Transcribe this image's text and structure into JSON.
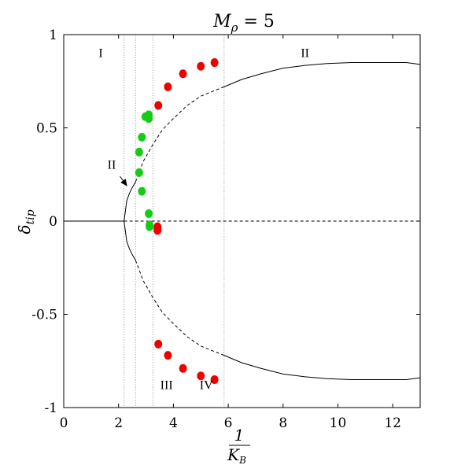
{
  "chart_data": {
    "type": "scatter",
    "title": "M_ρ = 5",
    "title_main": "M",
    "title_sub": "ρ",
    "title_rest": " = 5",
    "xlabel_num": "1",
    "xlabel_den": "K",
    "xlabel_den_sub": "B",
    "ylabel": "δ",
    "ylabel_sub": "tip",
    "xlim": [
      0,
      13
    ],
    "ylim": [
      -1,
      1
    ],
    "x_ticks": [
      0,
      2,
      4,
      6,
      8,
      10,
      12
    ],
    "x_tick_labels": [
      "0",
      "2",
      "4",
      "6",
      "8",
      "10",
      "12"
    ],
    "y_ticks": [
      -1,
      -0.5,
      0,
      0.5,
      1
    ],
    "y_tick_labels": [
      "-1",
      "-0.5",
      "0",
      "0.5",
      "1"
    ],
    "grid": false,
    "region_boundaries": [
      2.2,
      2.62,
      3.25,
      5.85
    ],
    "region_labels": [
      {
        "text": "I",
        "x": 1.35,
        "y": 0.88
      },
      {
        "text": "II",
        "x": 8.8,
        "y": 0.88
      },
      {
        "text": "II",
        "x": 1.75,
        "y": 0.28
      },
      {
        "text": "III",
        "x": 3.75,
        "y": -0.9
      },
      {
        "text": "IV",
        "x": 5.2,
        "y": -0.9
      }
    ],
    "arrow": {
      "from": [
        2.05,
        0.24
      ],
      "to": [
        2.3,
        0.19
      ]
    },
    "colors": {
      "green": "#14cc14",
      "red": "#ee0000",
      "line": "#000000",
      "boundary": "#888888"
    },
    "series": [
      {
        "color": "green",
        "x": [
          2.75,
          2.85,
          2.98,
          3.1,
          3.1,
          2.75,
          2.85,
          3.1,
          3.13,
          3.13
        ],
        "y": [
          0.37,
          0.45,
          0.56,
          0.57,
          0.55,
          0.26,
          0.16,
          0.04,
          -0.02,
          -0.03
        ]
      },
      {
        "color": "red",
        "x": [
          3.42,
          3.42,
          3.42,
          3.45,
          3.8,
          4.35,
          5.0,
          5.5,
          3.45,
          3.8,
          4.35,
          5.0,
          5.5
        ],
        "y": [
          -0.03,
          -0.04,
          -0.05,
          0.62,
          0.72,
          0.79,
          0.83,
          0.85,
          -0.66,
          -0.72,
          -0.79,
          -0.83,
          -0.85
        ]
      }
    ],
    "curves": [
      {
        "style": "solid",
        "x": [
          0,
          2.2
        ],
        "y": [
          0,
          0
        ]
      },
      {
        "style": "dashed",
        "x": [
          2.2,
          13
        ],
        "y": [
          0,
          0
        ]
      },
      {
        "style": "solid",
        "x": [
          2.2,
          2.3,
          2.4,
          2.5,
          2.62
        ],
        "y": [
          0,
          0.11,
          0.15,
          0.18,
          0.21
        ]
      },
      {
        "style": "dashed",
        "x": [
          2.62,
          2.9,
          3.25,
          3.6,
          4.0,
          4.5,
          5.0,
          5.5,
          5.85
        ],
        "y": [
          0.21,
          0.32,
          0.41,
          0.49,
          0.55,
          0.62,
          0.67,
          0.7,
          0.72
        ]
      },
      {
        "style": "solid",
        "x": [
          5.85,
          6.5,
          7.2,
          8.0,
          8.8,
          9.6,
          10.5,
          11.5,
          12.5,
          13
        ],
        "y": [
          0.72,
          0.76,
          0.79,
          0.82,
          0.835,
          0.845,
          0.85,
          0.85,
          0.85,
          0.84
        ]
      },
      {
        "style": "solid",
        "x": [
          2.2,
          2.3,
          2.4,
          2.5,
          2.62
        ],
        "y": [
          0,
          -0.11,
          -0.15,
          -0.18,
          -0.21
        ]
      },
      {
        "style": "dashed",
        "x": [
          2.62,
          2.9,
          3.25,
          3.6,
          4.0,
          4.5,
          5.0,
          5.5,
          5.85
        ],
        "y": [
          -0.21,
          -0.32,
          -0.41,
          -0.49,
          -0.55,
          -0.62,
          -0.67,
          -0.7,
          -0.72
        ]
      },
      {
        "style": "solid",
        "x": [
          5.85,
          6.5,
          7.2,
          8.0,
          8.8,
          9.6,
          10.5,
          11.5,
          12.5,
          13
        ],
        "y": [
          -0.72,
          -0.76,
          -0.79,
          -0.82,
          -0.835,
          -0.845,
          -0.85,
          -0.85,
          -0.85,
          -0.84
        ]
      }
    ]
  }
}
